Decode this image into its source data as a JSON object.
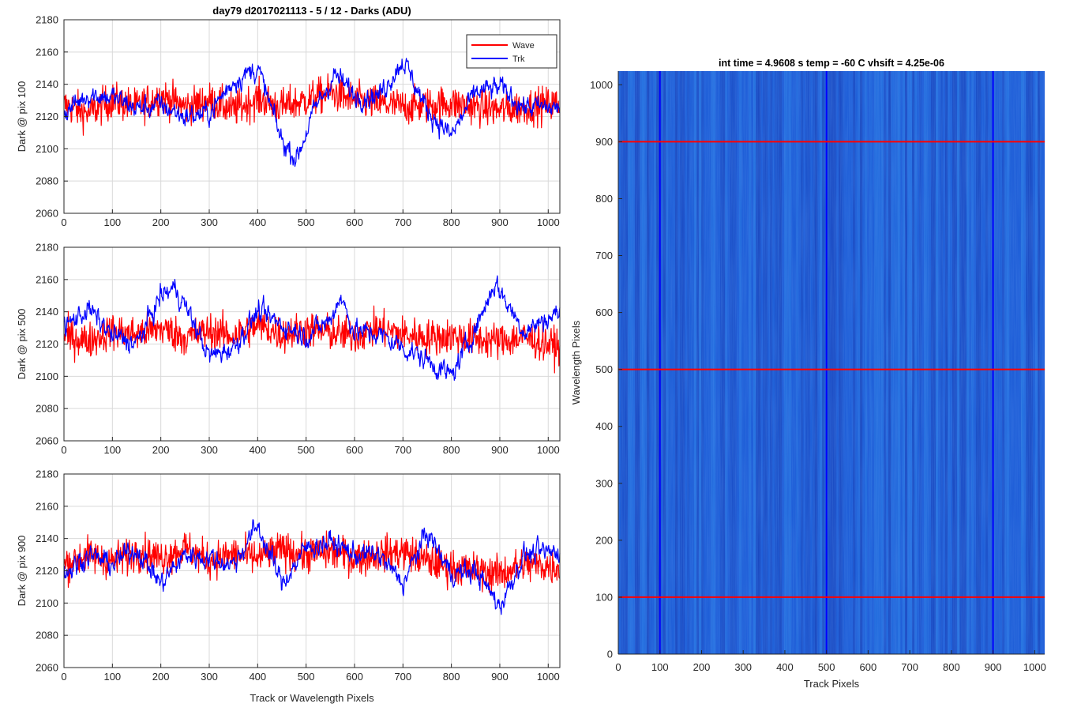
{
  "figure_title": "day79 d2017021113 - 5 / 12 - Darks (ADU)",
  "colors": {
    "wave": "#ff0000",
    "trk": "#0000ff",
    "axis": "#262626",
    "grid": "#d9d9d9",
    "image_base": "#1f5fd8",
    "image_hi": "#2b7fe6",
    "image_lo": "#1a3fb5"
  },
  "legend": {
    "entries": [
      "Wave",
      "Trk"
    ],
    "location": "top-right"
  },
  "chart_data": [
    {
      "type": "line",
      "title": "day79 d2017021113 - 5 / 12 - Darks (ADU)",
      "xlabel": "",
      "ylabel": "Dark @ pix 100",
      "xlim": [
        0,
        1024
      ],
      "ylim": [
        2060,
        2180
      ],
      "xticks": [
        0,
        100,
        200,
        300,
        400,
        500,
        600,
        700,
        800,
        900,
        1000
      ],
      "yticks": [
        2060,
        2080,
        2100,
        2120,
        2140,
        2160,
        2180
      ],
      "grid": true,
      "legend": "top-right",
      "series": [
        {
          "name": "Wave",
          "color": "#ff0000",
          "x": [
            0,
            50,
            100,
            150,
            200,
            250,
            300,
            350,
            400,
            450,
            500,
            550,
            600,
            650,
            700,
            750,
            800,
            850,
            900,
            950,
            1024
          ],
          "values": [
            2127,
            2122,
            2130,
            2126,
            2133,
            2126,
            2130,
            2124,
            2131,
            2126,
            2130,
            2135,
            2130,
            2128,
            2126,
            2127,
            2128,
            2126,
            2124,
            2126,
            2128
          ]
        },
        {
          "name": "Trk",
          "color": "#0000ff",
          "x": [
            0,
            50,
            100,
            150,
            200,
            250,
            300,
            350,
            400,
            450,
            480,
            520,
            560,
            600,
            650,
            700,
            750,
            800,
            850,
            900,
            950,
            1024
          ],
          "values": [
            2122,
            2134,
            2132,
            2125,
            2127,
            2120,
            2122,
            2142,
            2150,
            2105,
            2094,
            2126,
            2146,
            2133,
            2133,
            2155,
            2124,
            2108,
            2135,
            2138,
            2126,
            2125
          ]
        }
      ]
    },
    {
      "type": "line",
      "title": "",
      "xlabel": "",
      "ylabel": "Dark @ pix 500",
      "xlim": [
        0,
        1024
      ],
      "ylim": [
        2060,
        2180
      ],
      "xticks": [
        0,
        100,
        200,
        300,
        400,
        500,
        600,
        700,
        800,
        900,
        1000
      ],
      "yticks": [
        2060,
        2080,
        2100,
        2120,
        2140,
        2160,
        2180
      ],
      "grid": true,
      "series": [
        {
          "name": "Wave",
          "color": "#ff0000",
          "x": [
            0,
            50,
            100,
            150,
            200,
            250,
            300,
            350,
            400,
            450,
            500,
            550,
            600,
            650,
            700,
            750,
            800,
            850,
            900,
            950,
            1024
          ],
          "values": [
            2125,
            2122,
            2128,
            2126,
            2130,
            2124,
            2128,
            2125,
            2132,
            2126,
            2129,
            2127,
            2125,
            2130,
            2126,
            2124,
            2125,
            2123,
            2122,
            2124,
            2118
          ]
        },
        {
          "name": "Trk",
          "color": "#0000ff",
          "x": [
            0,
            50,
            100,
            150,
            200,
            230,
            260,
            300,
            350,
            400,
            450,
            500,
            550,
            570,
            600,
            650,
            700,
            750,
            800,
            850,
            890,
            950,
            1024
          ],
          "values": [
            2130,
            2142,
            2125,
            2120,
            2150,
            2155,
            2138,
            2112,
            2118,
            2140,
            2132,
            2125,
            2135,
            2150,
            2128,
            2126,
            2118,
            2110,
            2100,
            2130,
            2158,
            2128,
            2140
          ]
        }
      ]
    },
    {
      "type": "line",
      "title": "",
      "xlabel": "Track or Wavelength Pixels",
      "ylabel": "Dark @ pix 900",
      "xlim": [
        0,
        1024
      ],
      "ylim": [
        2060,
        2180
      ],
      "xticks": [
        0,
        100,
        200,
        300,
        400,
        500,
        600,
        700,
        800,
        900,
        1000
      ],
      "yticks": [
        2060,
        2080,
        2100,
        2120,
        2140,
        2160,
        2180
      ],
      "grid": true,
      "series": [
        {
          "name": "Wave",
          "color": "#ff0000",
          "x": [
            0,
            50,
            100,
            150,
            200,
            250,
            300,
            350,
            400,
            450,
            500,
            550,
            600,
            650,
            700,
            750,
            800,
            850,
            900,
            950,
            1024
          ],
          "values": [
            2124,
            2130,
            2126,
            2132,
            2128,
            2134,
            2126,
            2130,
            2128,
            2133,
            2130,
            2132,
            2128,
            2130,
            2132,
            2126,
            2122,
            2120,
            2118,
            2124,
            2122
          ]
        },
        {
          "name": "Trk",
          "color": "#0000ff",
          "x": [
            0,
            50,
            100,
            150,
            200,
            250,
            300,
            350,
            400,
            450,
            500,
            550,
            600,
            650,
            700,
            750,
            800,
            850,
            900,
            950,
            1024
          ],
          "values": [
            2118,
            2130,
            2124,
            2134,
            2112,
            2130,
            2128,
            2124,
            2148,
            2112,
            2134,
            2138,
            2130,
            2130,
            2112,
            2144,
            2118,
            2120,
            2098,
            2130,
            2132
          ]
        }
      ]
    },
    {
      "type": "heatmap",
      "title": "int time = 4.9608 s    temp = -60 C    vhsift = 4.25e-06",
      "xlabel": "Track Pixels",
      "ylabel": "Wavelength Pixels",
      "xlim": [
        0,
        1024
      ],
      "ylim": [
        0,
        1024
      ],
      "xticks": [
        0,
        100,
        200,
        300,
        400,
        500,
        600,
        700,
        800,
        900,
        1000
      ],
      "yticks": [
        0,
        100,
        200,
        300,
        400,
        500,
        600,
        700,
        800,
        900,
        1000
      ],
      "grid": false,
      "markers": {
        "vertical_lines": {
          "color": "#0000ff",
          "x": [
            100,
            500,
            900
          ]
        },
        "horizontal_lines": {
          "color": "#ff0000",
          "y": [
            100,
            500,
            900
          ]
        }
      }
    }
  ]
}
